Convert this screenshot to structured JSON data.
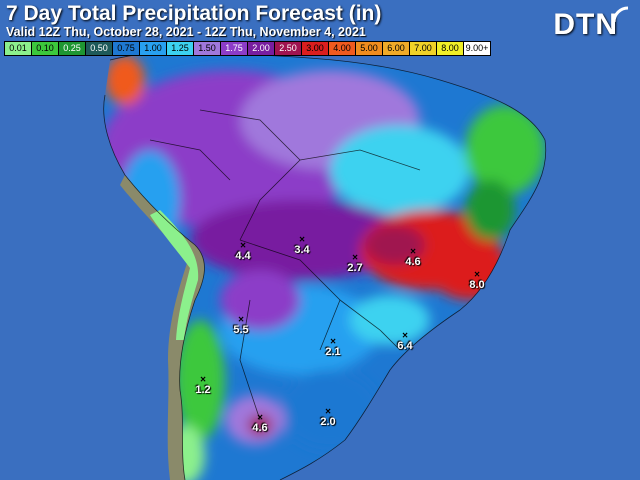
{
  "title": "7 Day Total Precipitation Forecast (in)",
  "subtitle": "Valid 12Z Thu, October 28, 2021 - 12Z Thu, November 4, 2021",
  "logo": "DTN",
  "legend": [
    {
      "label": "0.01",
      "color": "#8cf08c"
    },
    {
      "label": "0.10",
      "color": "#3cc83c"
    },
    {
      "label": "0.25",
      "color": "#1e9632"
    },
    {
      "label": "0.50",
      "color": "#1e5a5a"
    },
    {
      "label": "0.75",
      "color": "#1e78d2"
    },
    {
      "label": "1.00",
      "color": "#28a0f0"
    },
    {
      "label": "1.25",
      "color": "#3cd2f0"
    },
    {
      "label": "1.50",
      "color": "#a078dc"
    },
    {
      "label": "1.75",
      "color": "#8c3cc8"
    },
    {
      "label": "2.00",
      "color": "#781ea0"
    },
    {
      "label": "2.50",
      "color": "#a01450"
    },
    {
      "label": "3.00",
      "color": "#dc1e1e"
    },
    {
      "label": "4.00",
      "color": "#f05a1e"
    },
    {
      "label": "5.00",
      "color": "#f08c1e"
    },
    {
      "label": "6.00",
      "color": "#f0aa28"
    },
    {
      "label": "7.00",
      "color": "#f0d228"
    },
    {
      "label": "8.00",
      "color": "#f0f028"
    },
    {
      "label": "9.00+",
      "color": "#ffffff"
    }
  ],
  "markers": [
    "4.4",
    "3.4",
    "2.7",
    "4.6",
    "8.0",
    "5.5",
    "2.1",
    "6.4",
    "1.2",
    "2.0",
    "4.6"
  ]
}
